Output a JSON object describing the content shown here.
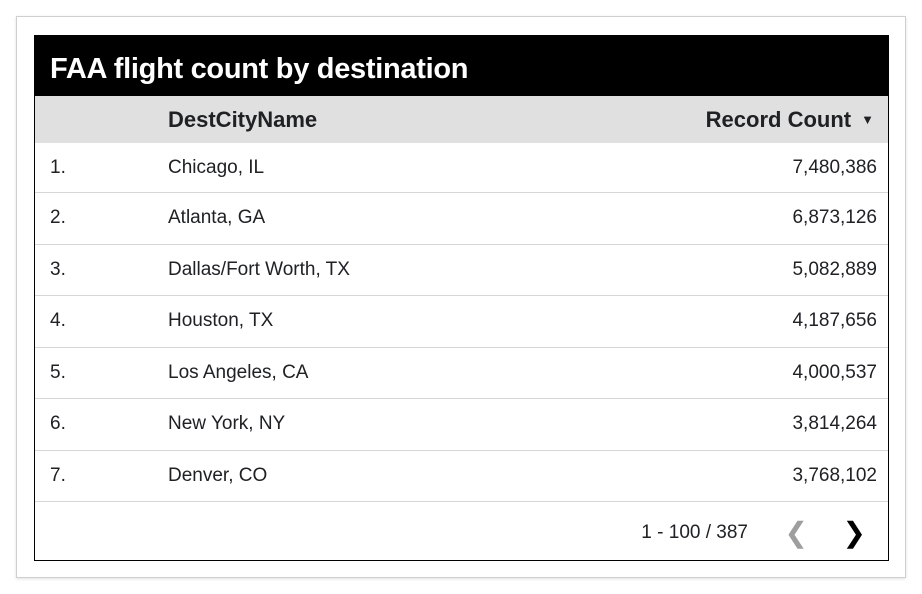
{
  "title": "FAA flight count by destination",
  "columns": {
    "name": "DestCityName",
    "count": "Record Count",
    "sort_icon": "sort-descending-icon"
  },
  "rows": [
    {
      "index": "1.",
      "city": "Chicago, IL",
      "count": "7,480,386"
    },
    {
      "index": "2.",
      "city": "Atlanta, GA",
      "count": "6,873,126"
    },
    {
      "index": "3.",
      "city": "Dallas/Fort Worth, TX",
      "count": "5,082,889"
    },
    {
      "index": "4.",
      "city": "Houston, TX",
      "count": "4,187,656"
    },
    {
      "index": "5.",
      "city": "Los Angeles, CA",
      "count": "4,000,537"
    },
    {
      "index": "6.",
      "city": "New York, NY",
      "count": "3,814,264"
    },
    {
      "index": "7.",
      "city": "Denver, CO",
      "count": "3,768,102"
    }
  ],
  "pagination": {
    "range": "1 - 100 / 387",
    "prev_enabled": false,
    "next_enabled": true
  },
  "colors": {
    "title_bg": "#000000",
    "header_bg": "#e0e0e0",
    "disabled": "#9e9e9e"
  }
}
